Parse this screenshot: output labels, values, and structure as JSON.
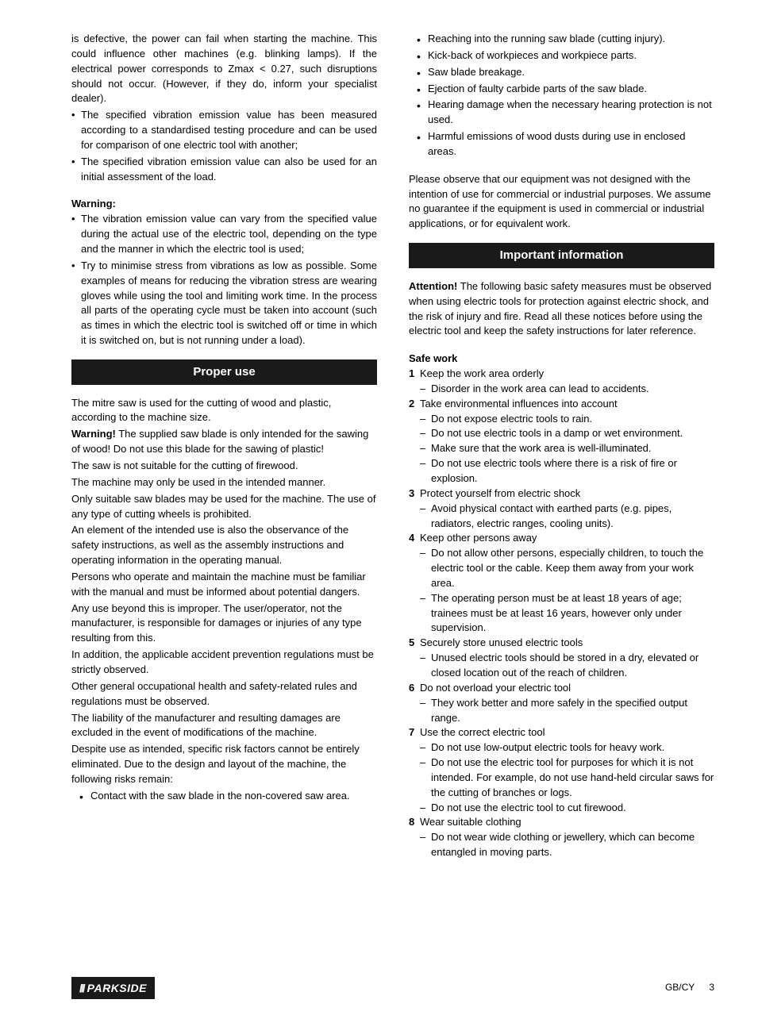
{
  "left": {
    "intro": "is defective, the power can fail when starting the machine. This could influence other machines (e.g. blinking lamps). If the electrical power corresponds to Zmax < 0.27, such disruptions should not occur. (However, if they do, inform your specialist dealer).",
    "b1": "The specified vibration emission value has been measured according to a standardised testing procedure and can be used for comparison of one electric tool with another;",
    "b2": "The specified vibration emission value can also be used for an initial assessment of the load.",
    "warningLabel": "Warning:",
    "w1": "The vibration emission value can vary from the specified value during the actual use of the electric tool, depending on the type and the manner in which the electric tool is used;",
    "w2": "Try to minimise stress from vibrations as low as possible. Some examples of means for reducing the vibration stress are wearing gloves while using the tool and limiting work time. In the process all parts of the operating cycle must be taken into account (such as times in which the electric tool is switched off or time in which it is switched on, but is not running under a load).",
    "headingProperUse": "Proper use",
    "p1": "The mitre saw is used for the cutting of wood and plastic, according to the machine size.",
    "p2a": "Warning!",
    "p2b": " The supplied saw blade is only intended for the sawing of wood! Do not use this blade for the sawing of plastic!",
    "p3": "The saw is not suitable for the cutting of firewood.",
    "p4": "The machine may only be used in the intended manner.",
    "p5": "Only suitable saw blades may be used for the machine. The use of any type of cutting wheels is prohibited.",
    "p6": "An element of the intended use is also the observance of the safety instructions, as well as the assembly instructions and operating information in the operating manual.",
    "p7": "Persons who operate and maintain the machine must be familiar with the manual and must be informed about potential dangers.",
    "p8": "Any use beyond this is improper. The user/operator, not the manufacturer, is responsible for damages or injuries of any type resulting from this.",
    "p9": "In addition, the applicable accident prevention regulations must be strictly observed.",
    "p10": "Other general occupational health and safety-related rules and regulations must be observed.",
    "p11": "The liability of the manufacturer and resulting damages are excluded in the event of modifications of the machine.",
    "p12": "Despite use as intended, specific risk factors cannot be entirely eliminated. Due to the design and layout of the machine, the following risks remain:",
    "r1": "Contact with the saw blade in the non-covered saw area."
  },
  "right": {
    "r2": "Reaching into the running saw blade (cutting injury).",
    "r3": "Kick-back of workpieces and workpiece parts.",
    "r4": "Saw blade breakage.",
    "r5": "Ejection of faulty carbide parts of the saw blade.",
    "r6": "Hearing damage when the necessary hearing protection is not used.",
    "r7": "Harmful emissions of wood dusts during use in enclosed areas.",
    "observe": "Please observe that our equipment was not designed with the intention of use for commercial or industrial purposes. We assume no guarantee if the equipment is used in commercial or industrial applications, or for equivalent work.",
    "headingImportant": "Important information",
    "attnA": "Attention!",
    "attnB": " The following basic safety measures must be observed when using electric tools for protection against electric shock, and the risk of injury and fire. Read all these notices before using the electric tool and keep the safety instructions for later reference.",
    "safeWork": "Safe work",
    "n1": "Keep the work area orderly",
    "n1a": "Disorder in the work area can lead to accidents.",
    "n2": "Take environmental influences into account",
    "n2a": "Do not expose electric tools to rain.",
    "n2b": "Do not use electric tools in a damp or wet environment.",
    "n2c": "Make sure that the work area is well-illuminated.",
    "n2d": "Do not use electric tools where there is a risk of fire or explosion.",
    "n3": "Protect yourself from electric shock",
    "n3a": "Avoid physical contact with earthed parts (e.g. pipes, radiators, electric ranges, cooling units).",
    "n4": "Keep other persons away",
    "n4a": "Do not allow other persons, especially children, to touch the electric tool or the cable. Keep them away from your work area.",
    "n4b": "The operating person must be at least 18 years of age; trainees must be at least 16 years, however only under supervision.",
    "n5": "Securely store unused electric tools",
    "n5a": "Unused electric tools should be stored in a dry, elevated or closed location out of the reach of children.",
    "n6": "Do not overload your electric tool",
    "n6a": "They work better and more safely in the specified output range.",
    "n7": "Use the correct electric tool",
    "n7a": "Do not use low-output electric tools for heavy work.",
    "n7b": "Do not use the electric tool for purposes for which it is not intended. For example, do not use hand-held circular saws for the cutting of branches or logs.",
    "n7c": "Do not use the electric tool to cut firewood.",
    "n8": "Wear suitable clothing",
    "n8a": "Do not wear wide clothing or jewellery, which can become entangled in moving parts."
  },
  "footer": {
    "brand": "PARKSIDE",
    "region": "GB/CY",
    "page": "3"
  }
}
